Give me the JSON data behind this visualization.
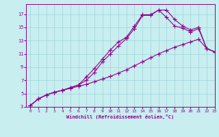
{
  "xlabel": "Windchill (Refroidissement éolien,°C)",
  "xlim": [
    -0.5,
    23
  ],
  "ylim": [
    3,
    18.5
  ],
  "xticks": [
    0,
    1,
    2,
    3,
    4,
    5,
    6,
    7,
    8,
    9,
    10,
    11,
    12,
    13,
    14,
    15,
    16,
    17,
    18,
    19,
    20,
    21,
    22,
    23
  ],
  "yticks": [
    3,
    5,
    7,
    9,
    11,
    13,
    15,
    17
  ],
  "bg_color": "#c8eef0",
  "line_color": "#880088",
  "grid_color": "#9fd4d8",
  "line1_x": [
    0,
    1,
    2,
    3,
    4,
    5,
    6,
    7,
    8,
    9,
    10,
    11,
    12,
    13,
    14,
    15,
    16,
    17,
    18,
    19,
    20,
    21,
    22,
    23
  ],
  "line1_y": [
    3.2,
    4.2,
    4.8,
    5.2,
    5.5,
    5.8,
    6.1,
    6.4,
    6.8,
    7.2,
    7.6,
    8.1,
    8.6,
    9.2,
    9.8,
    10.4,
    11.0,
    11.5,
    12.0,
    12.4,
    12.8,
    13.2,
    11.8,
    11.3
  ],
  "line2_x": [
    0,
    1,
    2,
    3,
    4,
    5,
    6,
    7,
    8,
    9,
    10,
    11,
    12,
    13,
    14,
    15,
    16,
    17,
    18,
    19,
    20,
    21,
    22,
    23
  ],
  "line2_y": [
    3.2,
    4.2,
    4.8,
    5.2,
    5.5,
    5.9,
    6.3,
    7.0,
    8.2,
    9.8,
    11.0,
    12.2,
    13.3,
    14.8,
    16.8,
    16.8,
    17.6,
    16.5,
    15.2,
    14.9,
    14.3,
    14.8,
    11.8,
    11.3
  ],
  "line3_x": [
    0,
    1,
    2,
    3,
    4,
    5,
    6,
    7,
    8,
    9,
    10,
    11,
    12,
    13,
    14,
    15,
    16,
    17,
    18,
    19,
    20,
    21,
    22,
    23
  ],
  "line3_y": [
    3.2,
    4.2,
    4.8,
    5.2,
    5.5,
    5.9,
    6.3,
    7.5,
    8.8,
    10.2,
    11.6,
    12.8,
    13.5,
    15.2,
    16.9,
    16.9,
    17.6,
    17.6,
    16.2,
    15.2,
    14.6,
    15.0,
    11.8,
    11.3
  ]
}
